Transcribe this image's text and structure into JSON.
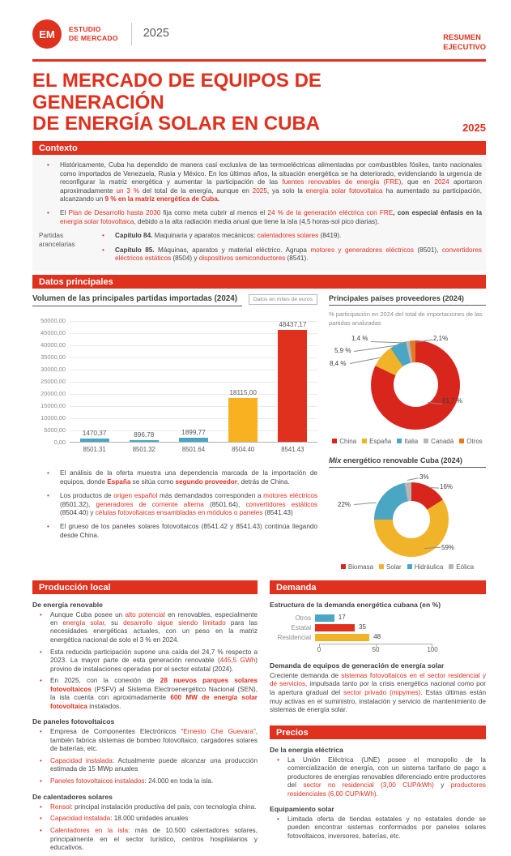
{
  "header": {
    "logo": "EM",
    "program_line1": "ESTUDIO",
    "program_line2": "DE MERCADO",
    "year": "2025",
    "right_line1": "RESUMEN",
    "right_line2": "EJECUTIVO"
  },
  "title": {
    "line1": "EL MERCADO DE EQUIPOS DE GENERACIÓN",
    "line2": "DE ENERGÍA SOLAR EN CUBA",
    "year": "2025"
  },
  "contexto": {
    "heading": "Contexto",
    "bullets": [
      [
        {
          "t": "Históricamente, Cuba ha dependido de manera casi exclusiva de las termoeléctricas alimentadas por combustibles fósiles, tanto nacionales como importados de Venezuela, Rusia y México. En los últimos años, la situación energética se ha deteriorado, evidenciando la urgencia de reconfigurar la matriz energética y aumentar la participación de las "
        },
        {
          "t": "fuentes renovables de energía (FRE)",
          "s": "r"
        },
        {
          "t": ", que en "
        },
        {
          "t": "2024",
          "s": "r"
        },
        {
          "t": " aportaron aproximadamente "
        },
        {
          "t": "un 3 %",
          "s": "r"
        },
        {
          "t": " del total de la energía, aunque en "
        },
        {
          "t": "2025",
          "s": "r"
        },
        {
          "t": ", ya solo la "
        },
        {
          "t": "energía solar fotovoltaica",
          "s": "r"
        },
        {
          "t": " ha aumentado su participación, alcanzando un "
        },
        {
          "t": "9 % en la matriz energética de Cuba",
          "s": "br"
        },
        {
          "t": ".",
          "s": "b"
        }
      ],
      [
        {
          "t": "El "
        },
        {
          "t": "Plan de Desarrollo hasta 2030",
          "s": "r"
        },
        {
          "t": " fija como meta cubrir al menos el "
        },
        {
          "t": "24 % de la generación eléctrica con FRE",
          "s": "r"
        },
        {
          "t": ", con especial énfasis en la ",
          "s": "b"
        },
        {
          "t": "energía solar fotovoltaica",
          "s": "r"
        },
        {
          "t": ", debido a la alta radiación media anual que tiene la isla (4,5 horas-sol pico diarias)."
        }
      ]
    ],
    "partidas_label": "Partidas arancelarias",
    "partidas_bullets": [
      [
        {
          "t": "Capítulo 84.",
          "s": "b"
        },
        {
          "t": " Maquinaria y aparatos mecánicos: "
        },
        {
          "t": "calentadores solares",
          "s": "r"
        },
        {
          "t": " (8419)."
        }
      ],
      [
        {
          "t": "Capítulo 85.",
          "s": "b"
        },
        {
          "t": " Máquinas, aparatos y material eléctrico. Agrupa "
        },
        {
          "t": "motores y generadores eléctricos",
          "s": "r"
        },
        {
          "t": " (8501), "
        },
        {
          "t": "convertidores eléctricos estáticos",
          "s": "r"
        },
        {
          "t": " (8504) y "
        },
        {
          "t": "dispositivos semiconductores",
          "s": "r"
        },
        {
          "t": " (8541)."
        }
      ]
    ]
  },
  "datos": {
    "heading": "Datos principales",
    "bullets": [
      [
        {
          "t": "El análisis de la oferta muestra una dependencia marcada de la importación de equipos, donde "
        },
        {
          "t": "España",
          "s": "br"
        },
        {
          "t": " se sitúa como "
        },
        {
          "t": "segundo proveedor",
          "s": "br"
        },
        {
          "t": ", detrás de China."
        }
      ],
      [
        {
          "t": "Los productos de "
        },
        {
          "t": "origen español",
          "s": "r"
        },
        {
          "t": " más demandados corresponden a "
        },
        {
          "t": "motores eléctricos",
          "s": "r"
        },
        {
          "t": " (8501.32), "
        },
        {
          "t": "generadores de corriente alterna",
          "s": "r"
        },
        {
          "t": " (8501.64), "
        },
        {
          "t": "convertidores estáticos",
          "s": "r"
        },
        {
          "t": " (8504.40) y "
        },
        {
          "t": "células fotovoltaicas ensambladas en módulos o paneles",
          "s": "r"
        },
        {
          "t": " (8541.43)"
        }
      ],
      [
        {
          "t": "El grueso de los paneles solares fotovoltaicos (8541.42 y 8541.43) continúa llegando desde China."
        }
      ]
    ]
  },
  "produccion": {
    "heading": "Producción local",
    "groups": [
      {
        "subheading": "De energía renovable",
        "bullets": [
          [
            {
              "t": "Aunque Cuba posee un "
            },
            {
              "t": "alto potencial",
              "s": "r"
            },
            {
              "t": " en renovables, especialmente en "
            },
            {
              "t": "energía solar",
              "s": "r"
            },
            {
              "t": ", su "
            },
            {
              "t": "desarrollo sigue siendo limitado",
              "s": "r"
            },
            {
              "t": " para las necesidades energéticas actuales, con un peso en la matriz energética nacional de solo el 3 % en 2024."
            }
          ],
          [
            {
              "t": "Esta reducida participación supone una caída del 24,7 % respecto a 2023. La mayor parte de esta generación renovable ("
            },
            {
              "t": "445,5 GWh",
              "s": "r"
            },
            {
              "t": ") provino de instalaciones operadas por el sector estatal (2024)."
            }
          ],
          [
            {
              "t": "En 2025, con la conexión de "
            },
            {
              "t": "28 nuevos parques solares fotovoltaicos",
              "s": "br"
            },
            {
              "t": " (PSFV) al Sistema Electroenergético Nacional (SEN), la isla cuenta con aproximadamente "
            },
            {
              "t": "600 MW de energía solar fotovoltaica",
              "s": "br"
            },
            {
              "t": " instalados."
            }
          ]
        ]
      },
      {
        "subheading": "De paneles fotovoltaicos",
        "bullets": [
          [
            {
              "t": "Empresa de Componentes Electrónicos “"
            },
            {
              "t": "Ernesto Che Guevara",
              "s": "r"
            },
            {
              "t": "”, también fabrica sistemas de bombeo fotovoltaico, cargadores solares de baterías, etc."
            }
          ],
          [
            {
              "t": "Capacidad instalada",
              "s": "r"
            },
            {
              "t": ": Actualmente puede alcanzar una producción estimada de 15 MWp anuales"
            }
          ],
          [
            {
              "t": "Paneles fotovoltaicos instalados",
              "s": "r"
            },
            {
              "t": ": 24.000 en toda la isla."
            }
          ]
        ]
      },
      {
        "subheading": "De calentadores solares",
        "bullets": [
          [
            {
              "t": "Rensol",
              "s": "r"
            },
            {
              "t": ": principal instalación productiva del país, con tecnología china."
            }
          ],
          [
            {
              "t": "Capacidad instalada",
              "s": "r"
            },
            {
              "t": ": 18.000 unidades anuales"
            }
          ],
          [
            {
              "t": "Calentadores en la isla",
              "s": "r"
            },
            {
              "t": ": más de 10.500 calentadores solares, principalmente en el sector turístico, centros hospitalarios y educativos."
            }
          ]
        ]
      }
    ]
  },
  "demanda": {
    "heading": "Demanda",
    "chart_heading": "Estructura de la demanda energética cubana (en %)",
    "subheading": "Demanda de equipos de generación de energía solar",
    "paragraph": [
      {
        "t": "Creciente demanda de "
      },
      {
        "t": "sistemas fotovoltaicos en el sector residencial y de servicios,",
        "s": "r"
      },
      {
        "t": " impulsada tanto por la crisis energética nacional como por la apertura gradual del "
      },
      {
        "t": "sector privado (mipymes)",
        "s": "r"
      },
      {
        "t": ". Estas últimas están muy activas en el suministro, instalación y servicio de mantenimiento de sistemas de energía solar."
      }
    ]
  },
  "precios": {
    "heading": "Precios",
    "groups": [
      {
        "subheading": "De la energía eléctrica",
        "bullets": [
          [
            {
              "t": "La Unión Eléctrica (UNE) posee el monopolio de la comercialización de energía, con un sistema tarifario de pago a productores de energías renovables diferenciado entre productores del "
            },
            {
              "t": "sector no residencial (3,00 CUP/kWh)",
              "s": "r"
            },
            {
              "t": " y "
            },
            {
              "t": "productores residenciales (6,00 CUP/kWh)",
              "s": "r"
            },
            {
              "t": "."
            }
          ]
        ]
      },
      {
        "subheading": "Equipamiento solar",
        "bullets": [
          [
            {
              "t": "Limitada oferta de tiendas estatales y no estatales donde se pueden encontrar sistemas conformados por paneles solares fotovoltaicos, inversores, baterías, etc."
            }
          ]
        ]
      }
    ]
  },
  "chart_data": [
    {
      "id": "imports_bar",
      "type": "bar",
      "title": "Volumen de las principales partidas importadas (2024)",
      "note": "Datos en miles de euros",
      "categories": [
        "8501.31",
        "8501.32",
        "8501.64",
        "8504.40",
        "8541.43"
      ],
      "values": [
        1470.37,
        896.78,
        1899.77,
        18115.0,
        48437.17
      ],
      "value_labels": [
        "1470,37",
        "896,78",
        "1899,77",
        "18115,00",
        "48437,17"
      ],
      "colors": [
        "#4ba6c3",
        "#4ba6c3",
        "#4ba6c3",
        "#f9b021",
        "#e0301e"
      ],
      "ylim": [
        0,
        50000
      ],
      "yticks": [
        "50000,00",
        "45000,00",
        "40000,00",
        "35000,00",
        "30000,00",
        "25000,00",
        "20000,00",
        "15000,00",
        "10000,00",
        "5000,00",
        "0,00"
      ],
      "grid": true,
      "legend": "none"
    },
    {
      "id": "suppliers_donut",
      "type": "pie",
      "title": "Principales países proveedores (2024)",
      "subtitle": "% participación en 2024 del total de importaciones de las partidas analizadas",
      "legend_position": "bottom",
      "slices": [
        {
          "name": "China",
          "value": 81.7,
          "label": "81,7 %",
          "color": "#d9261c"
        },
        {
          "name": "España",
          "value": 8.4,
          "label": "8,4 %",
          "color": "#f0b32a"
        },
        {
          "name": "Italia",
          "value": 5.9,
          "label": "5,9 %",
          "color": "#4ba6c3"
        },
        {
          "name": "Canadá",
          "value": 1.4,
          "label": "1,4 %",
          "color": "#b7b7b7"
        },
        {
          "name": "Otros",
          "value": 2.1,
          "label": "2,1%",
          "color": "#e87722"
        }
      ]
    },
    {
      "id": "mix_donut",
      "type": "pie",
      "title": "Mix energético renovable Cuba (2024)",
      "title_segments": [
        {
          "t": "Mix ",
          "s": "i"
        },
        {
          "t": "energético renovable Cuba (2024)"
        }
      ],
      "legend_position": "bottom",
      "slices": [
        {
          "name": "Biomasa",
          "value": 16,
          "label": "16%",
          "color": "#d9261c"
        },
        {
          "name": "Solar",
          "value": 59,
          "label": "59%",
          "color": "#f0b32a"
        },
        {
          "name": "Hidráulica",
          "value": 22,
          "label": "22%",
          "color": "#4ba6c3"
        },
        {
          "name": "Eólica",
          "value": 3,
          "label": "3%",
          "color": "#b7b7b7"
        }
      ]
    },
    {
      "id": "demand_hbar",
      "type": "bar",
      "orientation": "horizontal",
      "title": "Estructura de la demanda energética cubana (en %)",
      "categories": [
        "Otros",
        "Estatal",
        "Residencial"
      ],
      "values": [
        17,
        35,
        48
      ],
      "value_labels": [
        "17",
        "35",
        "48"
      ],
      "colors": [
        "#4ba6c3",
        "#e0301e",
        "#f0b32a"
      ],
      "xlim": [
        0,
        100
      ],
      "xticks": [
        "0",
        "50",
        "100"
      ]
    }
  ],
  "colors": {
    "brand_red": "#e0301e",
    "teal": "#4ba6c3",
    "yellow": "#f0b32a",
    "orange": "#e87722",
    "gray": "#b7b7b7",
    "body_text": "#464646"
  }
}
